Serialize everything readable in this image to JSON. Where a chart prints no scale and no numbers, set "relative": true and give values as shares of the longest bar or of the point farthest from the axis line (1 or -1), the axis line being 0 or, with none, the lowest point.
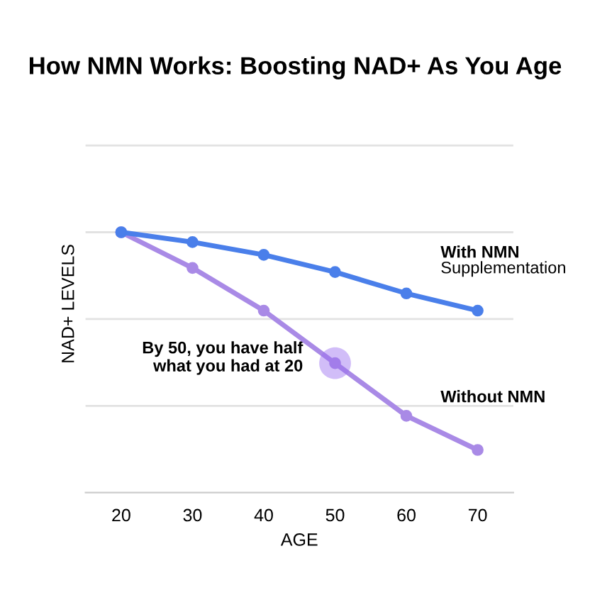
{
  "chart_data": {
    "type": "line",
    "title": "How NMN Works: Boosting NAD+ As You Age",
    "xlabel": "AGE",
    "ylabel": "NAD+ LEVELS",
    "x": [
      20,
      30,
      40,
      50,
      60,
      70
    ],
    "xlim": [
      15,
      75
    ],
    "xticks": [
      20,
      30,
      40,
      50,
      60,
      70
    ],
    "relative": true,
    "marker": "circle",
    "ref_lines": [
      {
        "axis": "y",
        "value": 0.333,
        "color": "#e2e2e2"
      },
      {
        "axis": "y",
        "value": 0.667,
        "color": "#e2e2e2"
      },
      {
        "axis": "y",
        "value": 1,
        "color": "#e2e2e2"
      },
      {
        "axis": "y",
        "value": 1.333,
        "color": "#e2e2e2"
      }
    ],
    "series": [
      {
        "name": "With NMN\nSupplementation",
        "color": "#4a7fea",
        "values": [
          1,
          0.962,
          0.913,
          0.847,
          0.765,
          0.699
        ]
      },
      {
        "name": "Without NMN",
        "color": "#a98ae6",
        "values": [
          1,
          0.863,
          0.699,
          0.497,
          0.295,
          0.164
        ]
      }
    ],
    "annotations": [
      {
        "text": "By 50, you have half\nwhat you had at 20",
        "x": 50,
        "y": 0.497
      }
    ]
  }
}
